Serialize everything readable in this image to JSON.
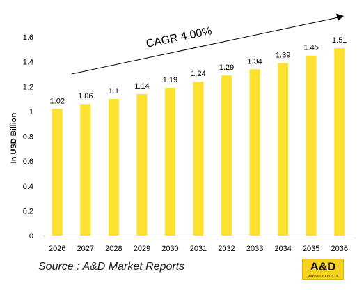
{
  "chart_data": {
    "type": "bar",
    "categories": [
      "2026",
      "2027",
      "2028",
      "2029",
      "2030",
      "2031",
      "2032",
      "2033",
      "2034",
      "2035",
      "2036"
    ],
    "values": [
      1.02,
      1.06,
      1.1,
      1.14,
      1.19,
      1.24,
      1.29,
      1.34,
      1.39,
      1.45,
      1.51
    ],
    "data_labels": [
      "1.02",
      "1.06",
      "1.1",
      "1.14",
      "1.19",
      "1.24",
      "1.29",
      "1.34",
      "1.39",
      "1.45",
      "1.51"
    ],
    "ylabel": "In USD Billion",
    "ylim": [
      0,
      1.6
    ],
    "yticks": [
      "0",
      "0.2",
      "0.4",
      "0.6",
      "0.8",
      "1",
      "1.2",
      "1.4",
      "1.6"
    ],
    "grid": false,
    "bar_color": "#fde130",
    "annotation": "CAGR 4.00%"
  },
  "footer": {
    "source": "Source : A&D Market Reports"
  },
  "logo": {
    "text": "A&D",
    "subtext": "MARKET REPORTS",
    "color": "#f7d21e"
  }
}
